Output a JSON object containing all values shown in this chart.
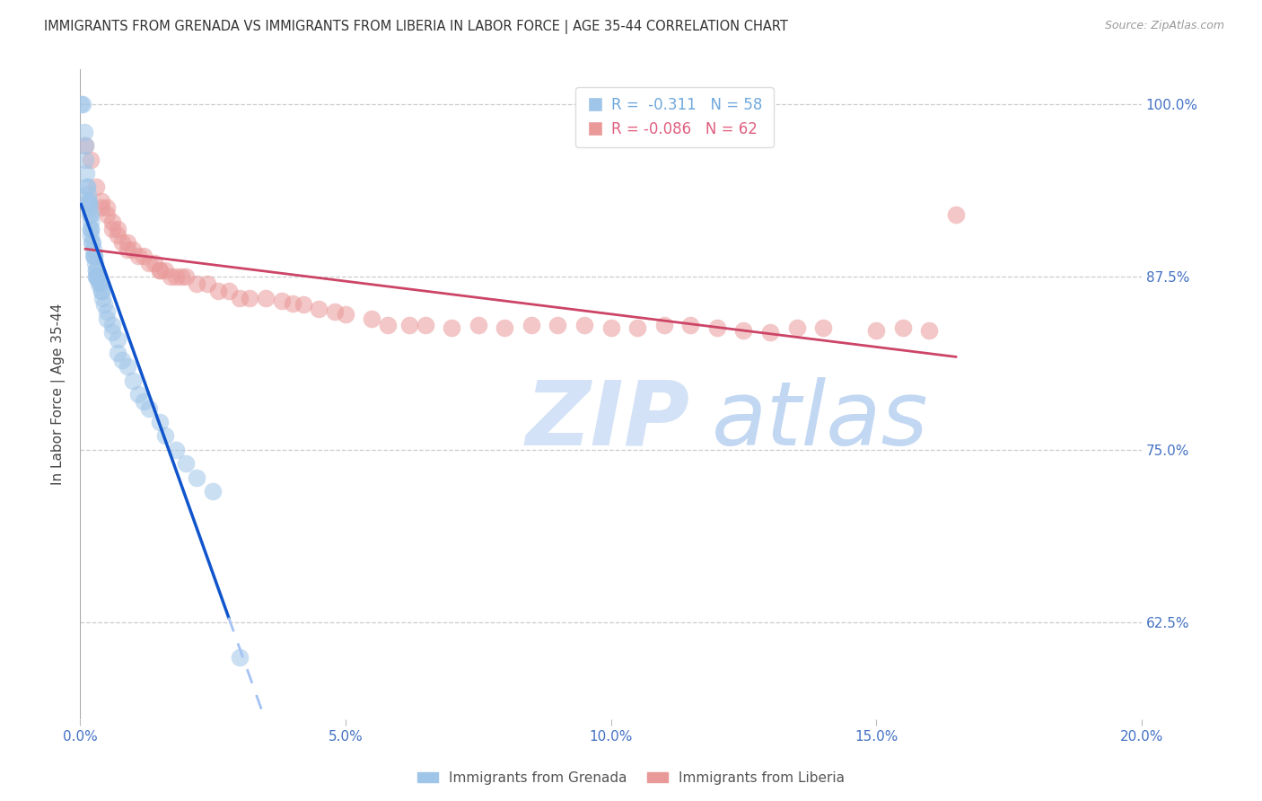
{
  "title": "IMMIGRANTS FROM GRENADA VS IMMIGRANTS FROM LIBERIA IN LABOR FORCE | AGE 35-44 CORRELATION CHART",
  "source": "Source: ZipAtlas.com",
  "ylabel": "In Labor Force | Age 35-44",
  "xlim": [
    0.0,
    0.2
  ],
  "ylim": [
    0.555,
    1.025
  ],
  "yticks": [
    0.625,
    0.75,
    0.875,
    1.0
  ],
  "ytick_labels": [
    "62.5%",
    "75.0%",
    "87.5%",
    "100.0%"
  ],
  "xticks": [
    0.0,
    0.05,
    0.1,
    0.15,
    0.2
  ],
  "xtick_labels": [
    "0.0%",
    "5.0%",
    "10.0%",
    "15.0%",
    "20.0%"
  ],
  "legend_entries": [
    {
      "label": "R =  -0.311   N = 58",
      "color": "#6fa8dc"
    },
    {
      "label": "R = -0.086   N = 62",
      "color": "#e06080"
    }
  ],
  "grenada_color": "#9fc5e8",
  "liberia_color": "#ea9999",
  "grenada_line_color": "#1155cc",
  "liberia_line_color": "#cc4466",
  "dashed_line_color": "#a4c2f4",
  "title_color": "#333333",
  "source_color": "#999999",
  "axis_label_color": "#444444",
  "tick_color": "#4472c4",
  "grid_color": "#cccccc",
  "watermark_zip": "ZIP",
  "watermark_atlas": "atlas",
  "watermark_color_zip": "#ccddf5",
  "watermark_color_atlas": "#b8d0f0",
  "background_color": "#ffffff",
  "grenada_x": [
    0.0002,
    0.0005,
    0.0008,
    0.001,
    0.001,
    0.0012,
    0.0013,
    0.0014,
    0.0015,
    0.0015,
    0.0016,
    0.0017,
    0.0018,
    0.0018,
    0.002,
    0.002,
    0.002,
    0.002,
    0.002,
    0.0022,
    0.0023,
    0.0025,
    0.0025,
    0.0026,
    0.0027,
    0.0028,
    0.003,
    0.003,
    0.003,
    0.003,
    0.0032,
    0.0033,
    0.0035,
    0.0036,
    0.0038,
    0.004,
    0.004,
    0.0042,
    0.0045,
    0.005,
    0.005,
    0.006,
    0.006,
    0.007,
    0.007,
    0.008,
    0.009,
    0.01,
    0.011,
    0.012,
    0.013,
    0.015,
    0.016,
    0.018,
    0.02,
    0.022,
    0.025,
    0.03
  ],
  "grenada_y": [
    1.0,
    1.0,
    0.98,
    0.97,
    0.96,
    0.95,
    0.94,
    0.94,
    0.935,
    0.93,
    0.93,
    0.928,
    0.925,
    0.92,
    0.92,
    0.915,
    0.91,
    0.91,
    0.905,
    0.9,
    0.9,
    0.895,
    0.89,
    0.89,
    0.89,
    0.885,
    0.88,
    0.88,
    0.875,
    0.875,
    0.875,
    0.875,
    0.872,
    0.87,
    0.87,
    0.865,
    0.865,
    0.86,
    0.855,
    0.85,
    0.845,
    0.84,
    0.835,
    0.83,
    0.82,
    0.815,
    0.81,
    0.8,
    0.79,
    0.785,
    0.78,
    0.77,
    0.76,
    0.75,
    0.74,
    0.73,
    0.72,
    0.6
  ],
  "liberia_x": [
    0.001,
    0.002,
    0.003,
    0.004,
    0.004,
    0.005,
    0.005,
    0.006,
    0.006,
    0.007,
    0.007,
    0.008,
    0.009,
    0.009,
    0.01,
    0.011,
    0.012,
    0.013,
    0.014,
    0.015,
    0.015,
    0.016,
    0.017,
    0.018,
    0.019,
    0.02,
    0.022,
    0.024,
    0.026,
    0.028,
    0.03,
    0.032,
    0.035,
    0.038,
    0.04,
    0.042,
    0.045,
    0.048,
    0.05,
    0.055,
    0.058,
    0.062,
    0.065,
    0.07,
    0.075,
    0.08,
    0.085,
    0.09,
    0.095,
    0.1,
    0.105,
    0.11,
    0.115,
    0.12,
    0.125,
    0.13,
    0.135,
    0.14,
    0.15,
    0.155,
    0.16,
    0.165
  ],
  "liberia_y": [
    0.97,
    0.96,
    0.94,
    0.93,
    0.925,
    0.925,
    0.92,
    0.915,
    0.91,
    0.91,
    0.905,
    0.9,
    0.9,
    0.895,
    0.895,
    0.89,
    0.89,
    0.885,
    0.885,
    0.88,
    0.88,
    0.88,
    0.875,
    0.875,
    0.875,
    0.875,
    0.87,
    0.87,
    0.865,
    0.865,
    0.86,
    0.86,
    0.86,
    0.858,
    0.856,
    0.855,
    0.852,
    0.85,
    0.848,
    0.845,
    0.84,
    0.84,
    0.84,
    0.838,
    0.84,
    0.838,
    0.84,
    0.84,
    0.84,
    0.838,
    0.838,
    0.84,
    0.84,
    0.838,
    0.836,
    0.835,
    0.838,
    0.838,
    0.836,
    0.838,
    0.836,
    0.92
  ],
  "solid_line_end": 0.028,
  "dash_line_end": 0.2
}
